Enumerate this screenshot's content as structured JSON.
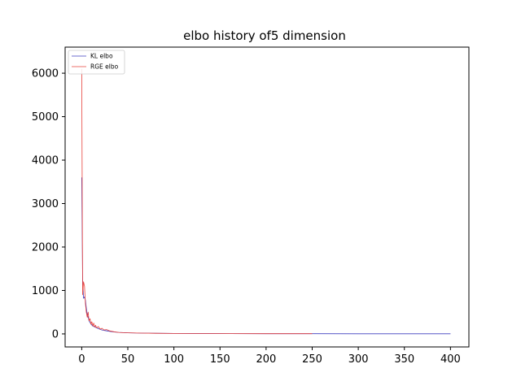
{
  "chart_data": {
    "type": "line",
    "title": "elbo history of5 dimension",
    "xlabel": "",
    "ylabel": "",
    "xlim": [
      -18,
      420
    ],
    "ylim": [
      -300,
      6600
    ],
    "xticks": [
      0,
      50,
      100,
      150,
      200,
      250,
      300,
      350,
      400
    ],
    "yticks": [
      0,
      1000,
      2000,
      3000,
      4000,
      5000,
      6000
    ],
    "grid": false,
    "legend": "top-left",
    "series": [
      {
        "name": "KL elbo",
        "color": "#3d3dbf",
        "x": [
          0,
          1,
          2,
          3,
          4,
          5,
          6,
          7,
          8,
          10,
          12,
          15,
          18,
          22,
          27,
          33,
          40,
          50,
          65,
          80,
          100,
          130,
          160,
          200,
          250,
          300,
          350,
          400
        ],
        "y": [
          3600,
          1250,
          820,
          850,
          780,
          600,
          450,
          380,
          300,
          230,
          180,
          150,
          120,
          90,
          70,
          50,
          35,
          25,
          18,
          14,
          11,
          8,
          6,
          5,
          4,
          3,
          3,
          2
        ]
      },
      {
        "name": "RGE elbo",
        "color": "#e8403a",
        "x": [
          0,
          1,
          2,
          3,
          4,
          5,
          6,
          7,
          8,
          9,
          10,
          11,
          12,
          13,
          14,
          15,
          16,
          18,
          20,
          22,
          24,
          27,
          30,
          35,
          40,
          50,
          65,
          80,
          100,
          130,
          160,
          200,
          250
        ],
        "y": [
          6100,
          900,
          1200,
          1100,
          700,
          500,
          380,
          500,
          300,
          350,
          220,
          280,
          180,
          250,
          160,
          200,
          140,
          170,
          110,
          130,
          90,
          100,
          70,
          50,
          35,
          25,
          18,
          14,
          11,
          8,
          6,
          5,
          4
        ]
      }
    ]
  }
}
